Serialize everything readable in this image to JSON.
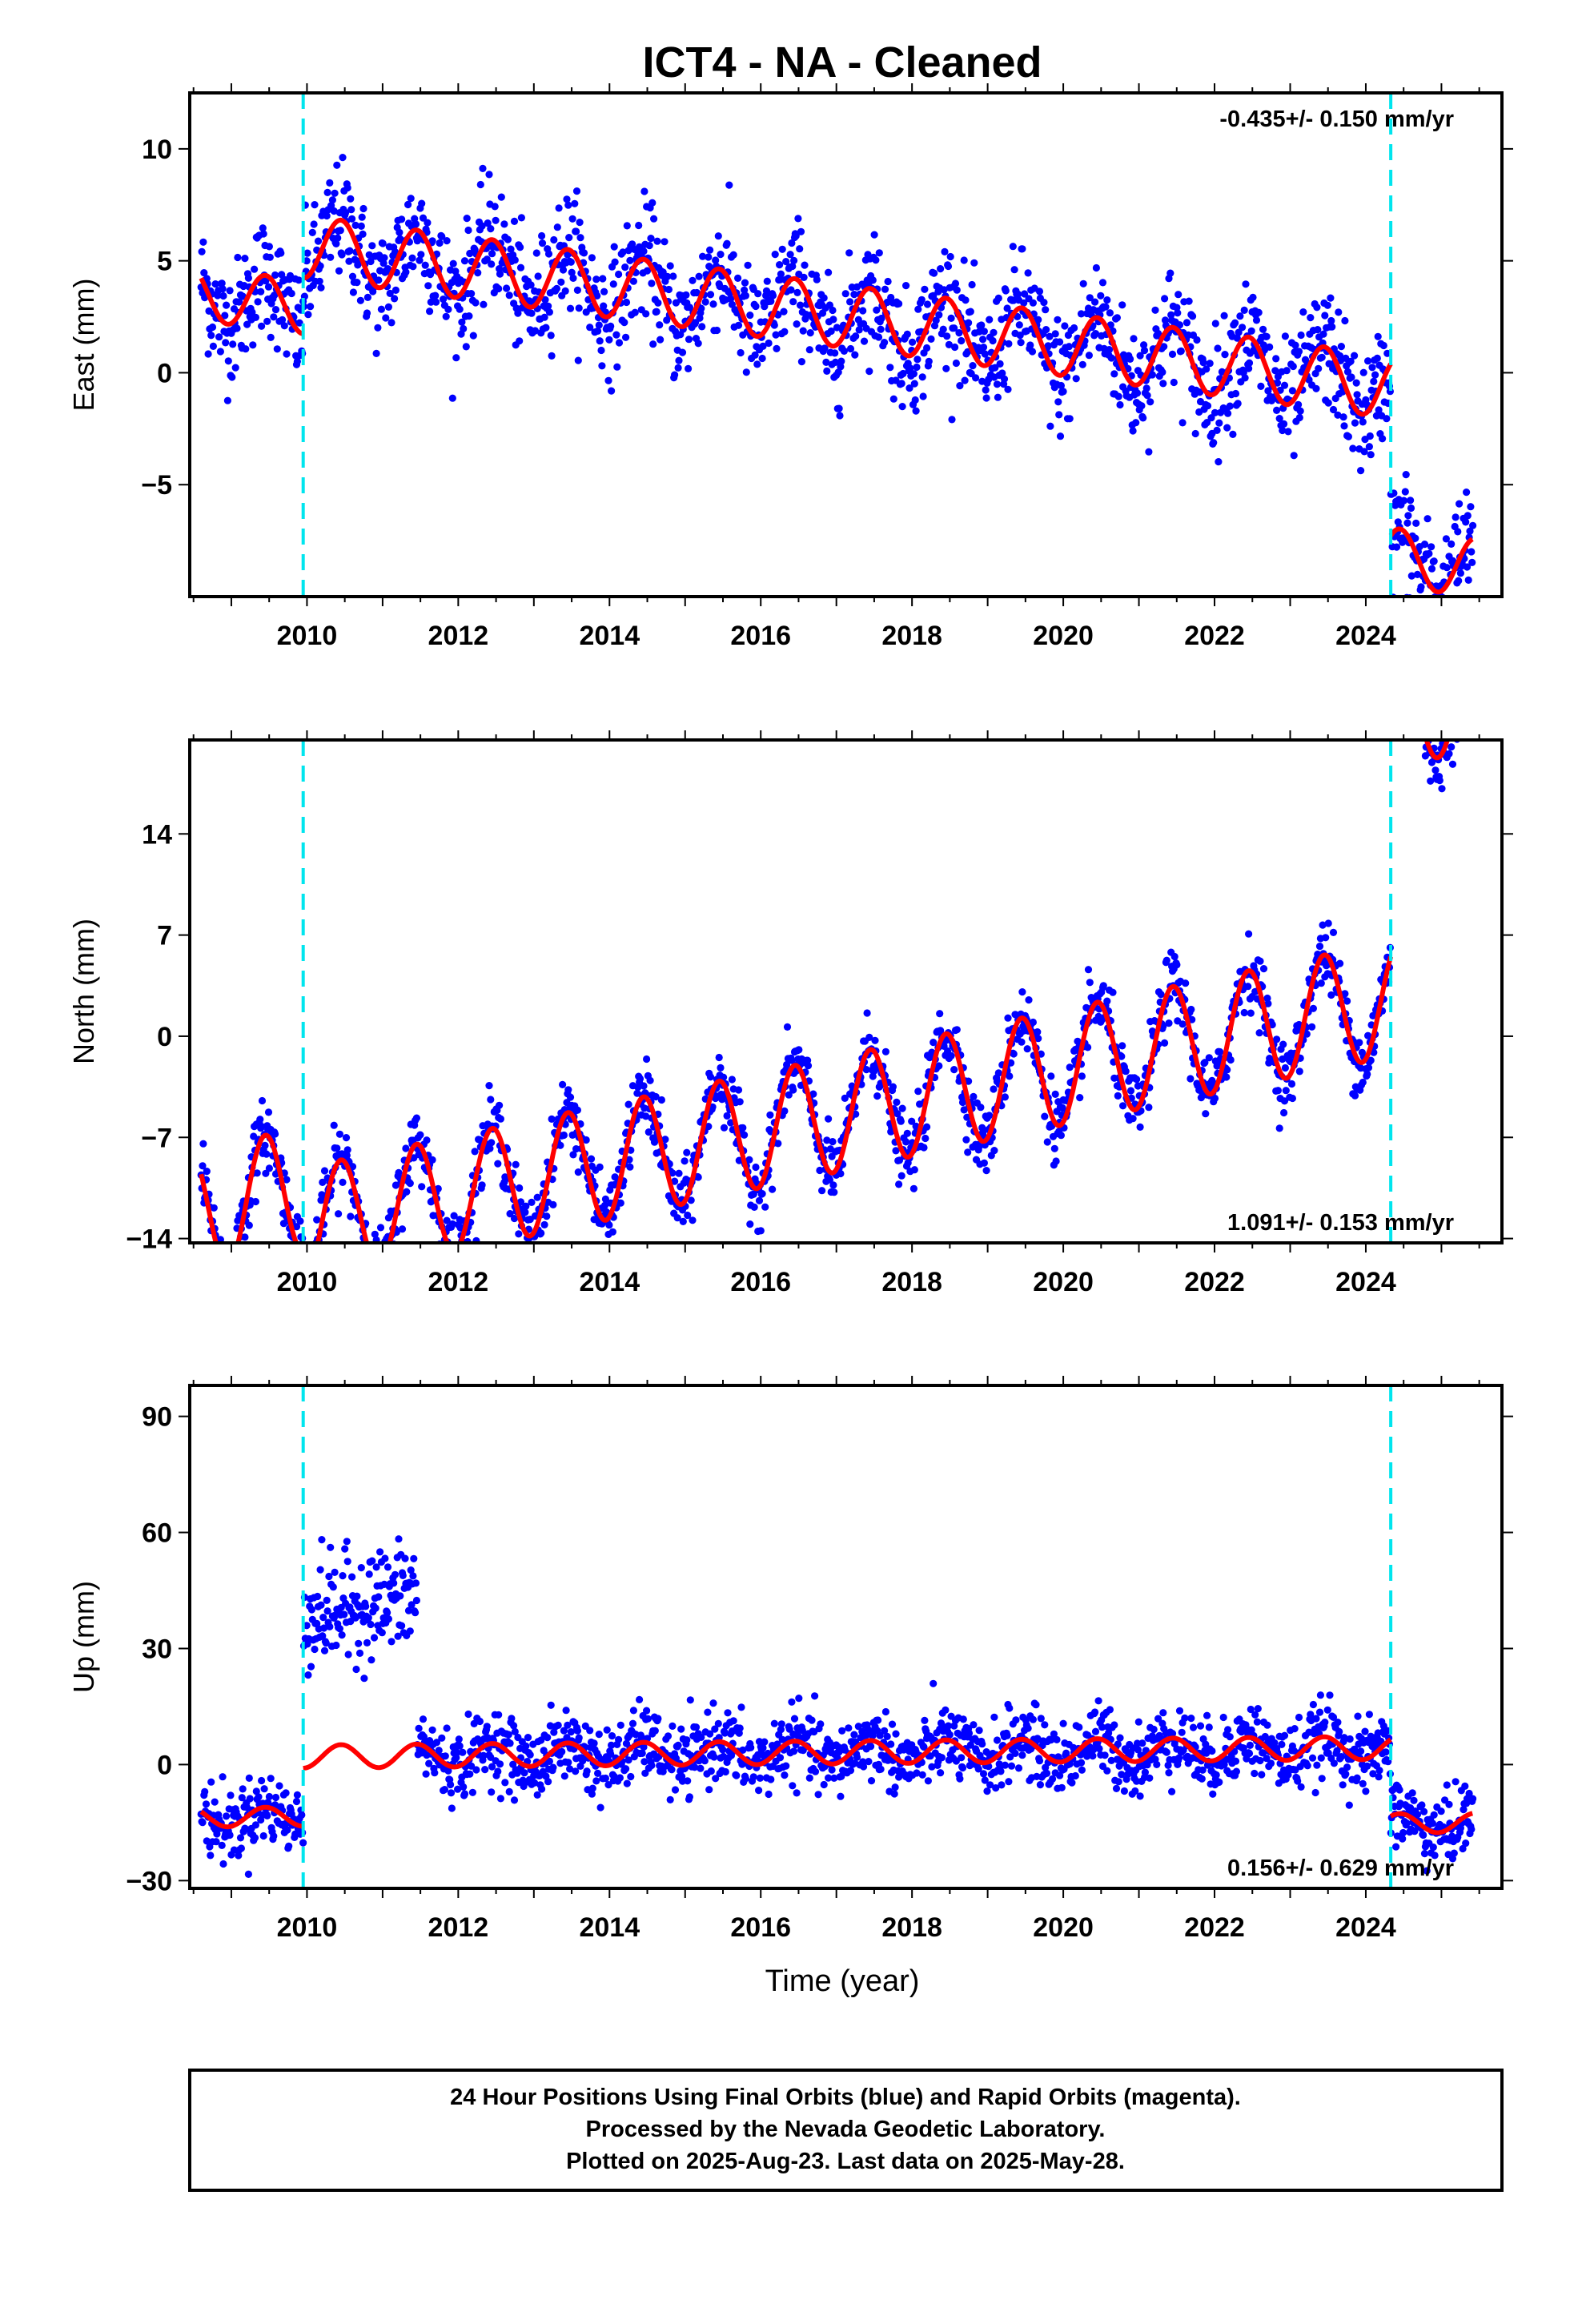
{
  "title": "ICT4  - NA - Cleaned",
  "x_axis_label": "Time (year)",
  "footer": {
    "line1": "24 Hour Positions Using Final Orbits (blue) and Rapid Orbits (magenta).",
    "line2": "Processed by the Nevada Geodetic Laboratory.",
    "line3": "Plotted on 2025-Aug-23. Last data on 2025-May-28."
  },
  "colors": {
    "points": "#0000ff",
    "model": "#ff0000",
    "breaks": "#00e5ee",
    "frame": "#000000"
  },
  "chart_data": [
    {
      "type": "scatter",
      "component": "east",
      "ylabel": "East (mm)",
      "xlim": [
        2008.45,
        2025.8
      ],
      "ylim": [
        -10,
        12.5
      ],
      "yticks": [
        -5,
        0,
        5,
        10
      ],
      "xticks": [
        2010,
        2012,
        2014,
        2016,
        2018,
        2020,
        2022,
        2024
      ],
      "rate_label": "-0.435+/- 0.150 mm/yr",
      "rate_position": "top-right",
      "breaks": [
        2009.95,
        2024.33
      ],
      "data_range": [
        2008.6,
        2025.42
      ],
      "model": {
        "segments": [
          {
            "x0": 2008.6,
            "x1": 2009.95,
            "offset": 0.3,
            "slope": -0.435,
            "amp": 1.2
          },
          {
            "x0": 2009.95,
            "x1": 2024.33,
            "offset": 3.0,
            "slope": -0.435,
            "amp": 1.4
          },
          {
            "x0": 2024.33,
            "x1": 2025.42,
            "offset": -4.6,
            "slope": -0.435,
            "amp": 1.3
          }
        ]
      },
      "scatter_sigma": 1.3
    },
    {
      "type": "scatter",
      "component": "north",
      "ylabel": "North (mm)",
      "xlim": [
        2008.45,
        2025.8
      ],
      "ylim": [
        -14.3,
        20.5
      ],
      "yticks": [
        -14,
        -7,
        0,
        7,
        14
      ],
      "xticks": [
        2010,
        2012,
        2014,
        2016,
        2018,
        2020,
        2022,
        2024
      ],
      "rate_label": "1.091+/- 0.153 mm/yr",
      "rate_position": "bottom-right",
      "breaks": [
        2009.95,
        2024.33
      ],
      "data_range": [
        2008.6,
        2025.42
      ],
      "model": {
        "segments": [
          {
            "x0": 2008.6,
            "x1": 2009.95,
            "offset": -4.0,
            "slope": 1.091,
            "amp": 4.3
          },
          {
            "x0": 2009.95,
            "x1": 2024.33,
            "offset": -6.5,
            "slope": 1.091,
            "amp": 4.0
          },
          {
            "x0": 2024.33,
            "x1": 2025.42,
            "offset": 13.0,
            "slope": 1.091,
            "amp": 3.5
          }
        ]
      },
      "scatter_sigma": 1.2
    },
    {
      "type": "scatter",
      "component": "up",
      "ylabel": "Up (mm)",
      "xlim": [
        2008.45,
        2025.8
      ],
      "ylim": [
        -32,
        98
      ],
      "yticks": [
        -30,
        0,
        30,
        60,
        90
      ],
      "xticks": [
        2010,
        2012,
        2014,
        2016,
        2018,
        2020,
        2022,
        2024
      ],
      "rate_label": "0.156+/- 0.629 mm/yr",
      "rate_position": "bottom-right",
      "breaks": [
        2009.95,
        2024.33
      ],
      "data_range": [
        2008.6,
        2025.42
      ],
      "model": {
        "segments": [
          {
            "x0": 2008.6,
            "x1": 2009.95,
            "offset": -12.5,
            "slope": 0.156,
            "amp": 2.5
          },
          {
            "x0": 2009.95,
            "x1": 2024.33,
            "offset": 3.0,
            "slope": 0.156,
            "amp": 3.0
          },
          {
            "x0": 2024.33,
            "x1": 2025.42,
            "offset": -16.5,
            "slope": 0.156,
            "amp": 2.5
          }
        ]
      },
      "outlier_block": {
        "x0": 2009.95,
        "x1": 2011.45,
        "center": 38,
        "sigma": 7
      },
      "scatter_sigma": 4.5
    }
  ]
}
